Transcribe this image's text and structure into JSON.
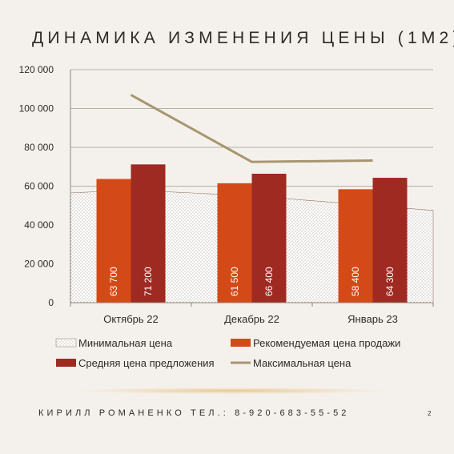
{
  "title": "ДИНАМИКА ИЗМЕНЕНИЯ ЦЕНЫ (1М2)",
  "footer": "КИРИЛЛ РОМАНЕНКО ТЕЛ.: 8-920-683-55-52",
  "page_number": "2",
  "colors": {
    "recommended": "#d34a18",
    "average": "#9e2a22",
    "max_line": "#a8956f",
    "min_area_fill": "#ffffff",
    "min_area_dots": "#8a7868",
    "grid": "#b9b0a6"
  },
  "chart_data": {
    "type": "bar",
    "categories": [
      "Октябрь 22",
      "Декабрь 22",
      "Январь 23"
    ],
    "ylim": [
      0,
      120000
    ],
    "yticks": [
      0,
      20000,
      40000,
      60000,
      80000,
      100000,
      120000
    ],
    "ytick_labels": [
      "0",
      "20 000",
      "40 000",
      "60 000",
      "80 000",
      "100 000",
      "120 000"
    ],
    "grid": true,
    "legend_position": "bottom",
    "series": [
      {
        "name": "Минимальная цена",
        "kind": "area",
        "values": [
          58000,
          55000,
          50000
        ]
      },
      {
        "name": "Рекомендуемая цена продажи",
        "kind": "bar",
        "values": [
          63700,
          61500,
          58400
        ],
        "labels": [
          "63 700",
          "61 500",
          "58 400"
        ]
      },
      {
        "name": "Средняя цена предложения",
        "kind": "bar",
        "values": [
          71200,
          66400,
          64300
        ],
        "labels": [
          "71 200",
          "66 400",
          "64 300"
        ]
      },
      {
        "name": "Максимальная цена",
        "kind": "line",
        "values": [
          107000,
          72500,
          73200
        ]
      }
    ]
  }
}
